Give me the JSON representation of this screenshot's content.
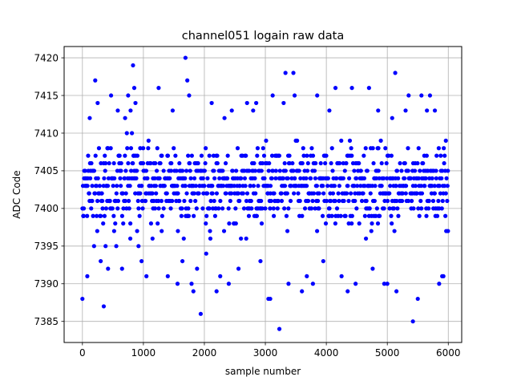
{
  "chart_data": {
    "type": "scatter",
    "title": "channel051 logain raw data",
    "xlabel": "sample number",
    "ylabel": "ADC Code",
    "xlim": [
      -300,
      6220
    ],
    "ylim": [
      7382.2,
      7421.5
    ],
    "xticks": [
      0,
      1000,
      2000,
      3000,
      4000,
      5000,
      6000
    ],
    "yticks": [
      7385,
      7390,
      7395,
      7400,
      7405,
      7410,
      7415,
      7420
    ],
    "grid": true,
    "marker_color": "#0000ff",
    "series": [
      {
        "sampled": true,
        "n_samples": 6000,
        "value_range": [
          7384,
          7420
        ],
        "points": [
          [
            0,
            7388
          ],
          [
            20,
            7399
          ],
          [
            45,
            7405
          ],
          [
            80,
            7391
          ],
          [
            120,
            7412
          ],
          [
            160,
            7401
          ],
          [
            210,
            7417
          ],
          [
            250,
            7414
          ],
          [
            300,
            7393
          ],
          [
            350,
            7387
          ],
          [
            380,
            7395
          ],
          [
            420,
            7392
          ],
          [
            470,
            7415
          ],
          [
            520,
            7397
          ],
          [
            580,
            7413
          ],
          [
            650,
            7392
          ],
          [
            700,
            7412
          ],
          [
            750,
            7415
          ],
          [
            790,
            7413
          ],
          [
            830,
            7419
          ],
          [
            850,
            7416
          ],
          [
            870,
            7414
          ],
          [
            920,
            7395
          ],
          [
            970,
            7393
          ],
          [
            1050,
            7391
          ],
          [
            1150,
            7396
          ],
          [
            1250,
            7416
          ],
          [
            1300,
            7397
          ],
          [
            1400,
            7391
          ],
          [
            1480,
            7413
          ],
          [
            1560,
            7390
          ],
          [
            1640,
            7393
          ],
          [
            1690,
            7420
          ],
          [
            1720,
            7417
          ],
          [
            1750,
            7415
          ],
          [
            1790,
            7390
          ],
          [
            1820,
            7389
          ],
          [
            1880,
            7392
          ],
          [
            1940,
            7386
          ],
          [
            2030,
            7394
          ],
          [
            2120,
            7414
          ],
          [
            2200,
            7389
          ],
          [
            2260,
            7391
          ],
          [
            2330,
            7412
          ],
          [
            2400,
            7390
          ],
          [
            2450,
            7413
          ],
          [
            2560,
            7392
          ],
          [
            2600,
            7396
          ],
          [
            2700,
            7414
          ],
          [
            2800,
            7413
          ],
          [
            2850,
            7414
          ],
          [
            2920,
            7393
          ],
          [
            3050,
            7388
          ],
          [
            3080,
            7388
          ],
          [
            3120,
            7415
          ],
          [
            3230,
            7384
          ],
          [
            3300,
            7414
          ],
          [
            3330,
            7418
          ],
          [
            3380,
            7390
          ],
          [
            3460,
            7418
          ],
          [
            3480,
            7415
          ],
          [
            3600,
            7389
          ],
          [
            3680,
            7391
          ],
          [
            3780,
            7390
          ],
          [
            3850,
            7415
          ],
          [
            3950,
            7393
          ],
          [
            4050,
            7413
          ],
          [
            4150,
            7416
          ],
          [
            4250,
            7391
          ],
          [
            4350,
            7389
          ],
          [
            4420,
            7416
          ],
          [
            4480,
            7390
          ],
          [
            4650,
            7396
          ],
          [
            4700,
            7416
          ],
          [
            4760,
            7392
          ],
          [
            4850,
            7413
          ],
          [
            4950,
            7390
          ],
          [
            5000,
            7390
          ],
          [
            5080,
            7412
          ],
          [
            5130,
            7418
          ],
          [
            5150,
            7389
          ],
          [
            5300,
            7413
          ],
          [
            5350,
            7415
          ],
          [
            5420,
            7385
          ],
          [
            5500,
            7388
          ],
          [
            5560,
            7415
          ],
          [
            5650,
            7413
          ],
          [
            5700,
            7415
          ],
          [
            5780,
            7413
          ],
          [
            5850,
            7390
          ],
          [
            5900,
            7391
          ],
          [
            5920,
            7391
          ],
          [
            5960,
            7409
          ]
        ]
      }
    ]
  }
}
